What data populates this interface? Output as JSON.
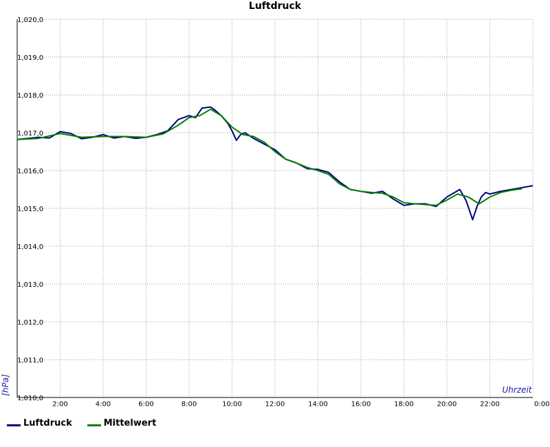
{
  "colors": {
    "luftdruck": "#000080",
    "mittelwert": "#008000",
    "grid": "#9a9a9a",
    "axis": "#000000"
  },
  "chart_data": {
    "type": "line",
    "title": "Luftdruck",
    "xlabel": "Uhrzeit",
    "ylabel": "[hPa]",
    "xlim": [
      0,
      24
    ],
    "ylim": [
      1010,
      1020
    ],
    "y_ticks": [
      1010,
      1011,
      1012,
      1013,
      1014,
      1015,
      1016,
      1017,
      1018,
      1019,
      1020
    ],
    "y_tick_labels": [
      "1,010,0",
      "1,011,0",
      "1,012,0",
      "1,013,0",
      "1,014,0",
      "1,015,0",
      "1,016,0",
      "1,017,0",
      "1,018,0",
      "1,019,0",
      "1,020,0"
    ],
    "x_ticks": [
      2,
      4,
      6,
      8,
      10,
      12,
      14,
      16,
      18,
      20,
      22,
      24
    ],
    "x_tick_labels": [
      "2:00",
      "4:00",
      "6:00",
      "8:00",
      "10:00",
      "12:00",
      "14:00",
      "16:00",
      "18:00",
      "20:00",
      "22:00",
      "0:00"
    ],
    "grid": true,
    "legend_position": "bottom-left",
    "series": [
      {
        "name": "Luftdruck",
        "x": [
          0,
          0.5,
          1.0,
          1.5,
          2.0,
          2.5,
          3.0,
          3.5,
          4.0,
          4.5,
          5.0,
          5.5,
          6.0,
          6.5,
          7.0,
          7.5,
          8.0,
          8.3,
          8.6,
          9.0,
          9.2,
          9.5,
          9.8,
          10.0,
          10.2,
          10.4,
          10.6,
          11.0,
          11.5,
          12.0,
          12.5,
          13.0,
          13.5,
          14.0,
          14.5,
          15.0,
          15.5,
          16.0,
          16.5,
          17.0,
          17.5,
          18.0,
          18.5,
          19.0,
          19.5,
          20.0,
          20.3,
          20.6,
          20.9,
          21.2,
          21.4,
          21.6,
          21.8,
          22.0,
          22.5,
          23.0,
          23.5,
          24.0
        ],
        "values": [
          1016.82,
          1016.85,
          1016.88,
          1016.86,
          1017.03,
          1016.98,
          1016.84,
          1016.88,
          1016.95,
          1016.86,
          1016.9,
          1016.85,
          1016.88,
          1016.95,
          1017.05,
          1017.35,
          1017.45,
          1017.4,
          1017.65,
          1017.68,
          1017.6,
          1017.45,
          1017.25,
          1017.05,
          1016.8,
          1016.95,
          1017.0,
          1016.85,
          1016.7,
          1016.55,
          1016.3,
          1016.2,
          1016.05,
          1016.03,
          1015.95,
          1015.7,
          1015.5,
          1015.45,
          1015.4,
          1015.45,
          1015.25,
          1015.08,
          1015.12,
          1015.12,
          1015.05,
          1015.3,
          1015.4,
          1015.5,
          1015.2,
          1014.7,
          1015.05,
          1015.3,
          1015.42,
          1015.38,
          1015.45,
          1015.5,
          1015.55,
          1015.6
        ]
      },
      {
        "name": "Mittelwert",
        "x": [
          0,
          1.0,
          2.0,
          3.0,
          4.0,
          5.0,
          6.0,
          6.8,
          7.5,
          8.0,
          8.5,
          9.0,
          9.5,
          10.0,
          10.5,
          11.0,
          11.5,
          12.0,
          12.5,
          13.0,
          13.5,
          14.0,
          14.5,
          15.0,
          15.5,
          16.0,
          16.5,
          17.0,
          17.5,
          18.0,
          18.5,
          19.0,
          19.5,
          20.0,
          20.5,
          21.0,
          21.5,
          22.0,
          22.5,
          23.0,
          23.5
        ],
        "values": [
          1016.82,
          1016.85,
          1016.98,
          1016.88,
          1016.9,
          1016.9,
          1016.88,
          1016.97,
          1017.2,
          1017.4,
          1017.45,
          1017.62,
          1017.45,
          1017.15,
          1016.95,
          1016.9,
          1016.75,
          1016.5,
          1016.3,
          1016.2,
          1016.08,
          1016.0,
          1015.9,
          1015.65,
          1015.5,
          1015.45,
          1015.42,
          1015.4,
          1015.3,
          1015.15,
          1015.12,
          1015.1,
          1015.08,
          1015.22,
          1015.38,
          1015.3,
          1015.12,
          1015.3,
          1015.42,
          1015.48,
          1015.52
        ]
      }
    ]
  }
}
